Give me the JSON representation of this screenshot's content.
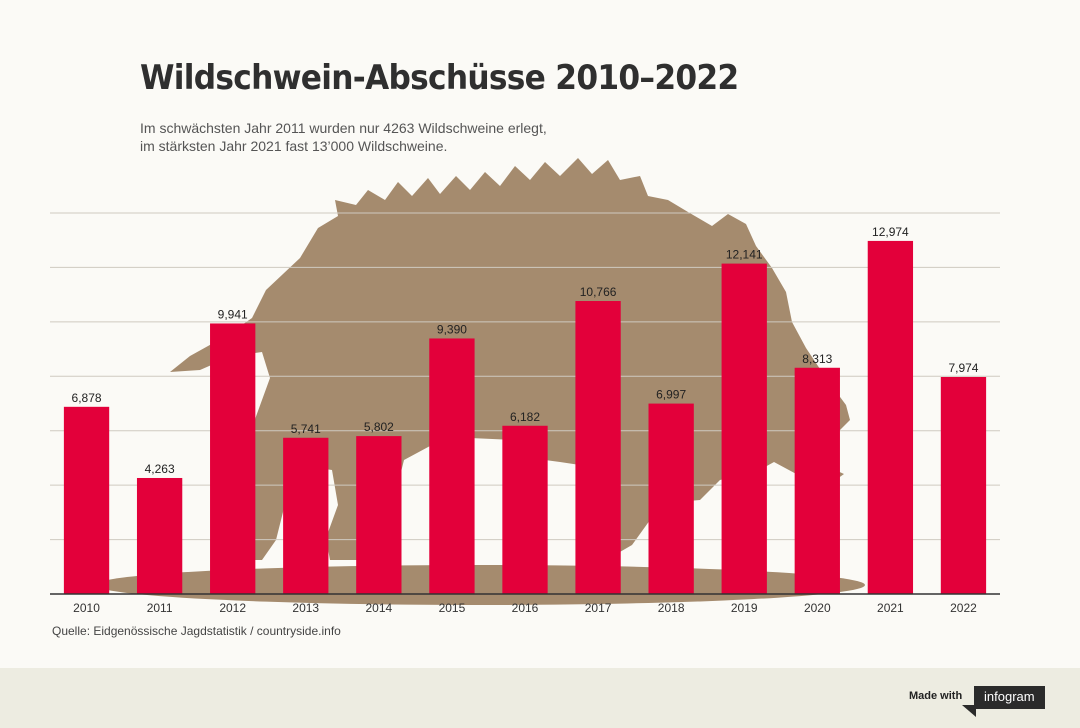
{
  "header": {
    "title": "Wildschwein-Abschüsse 2010–2022",
    "subtitle_lines": [
      "Im schwächsten Jahr 2011 wurden nur 4263 Wildschweine erlegt,",
      "im stärksten Jahr 2021 fast 13’000 Wildschweine."
    ]
  },
  "source": "Quelle: Eidgenössische Jagdstatistik / countryside.info",
  "footer": {
    "made_with": "Made with",
    "brand": "infogram"
  },
  "colors": {
    "bar": "#e3003a",
    "silhouette": "#a58b6e",
    "background": "#fbfaf6",
    "grid": "#cfcac0"
  },
  "chart_data": {
    "type": "bar",
    "categories": [
      "2010",
      "2011",
      "2012",
      "2013",
      "2014",
      "2015",
      "2016",
      "2017",
      "2018",
      "2019",
      "2020",
      "2021",
      "2022"
    ],
    "values": [
      6878,
      4263,
      9941,
      5741,
      5802,
      9390,
      6182,
      10766,
      6997,
      12141,
      8313,
      12974,
      7974
    ],
    "value_labels": [
      "6,878",
      "4,263",
      "9,941",
      "5,741",
      "5,802",
      "9,390",
      "6,182",
      "10,766",
      "6,997",
      "12,141",
      "8,313",
      "12,974",
      "7,974"
    ],
    "title": "Wildschwein-Abschüsse 2010–2022",
    "xlabel": "",
    "ylabel": "",
    "ylim": [
      0,
      14000
    ],
    "grid": true,
    "y_tick_labels_shown": false,
    "background_image": "boar-silhouette"
  }
}
